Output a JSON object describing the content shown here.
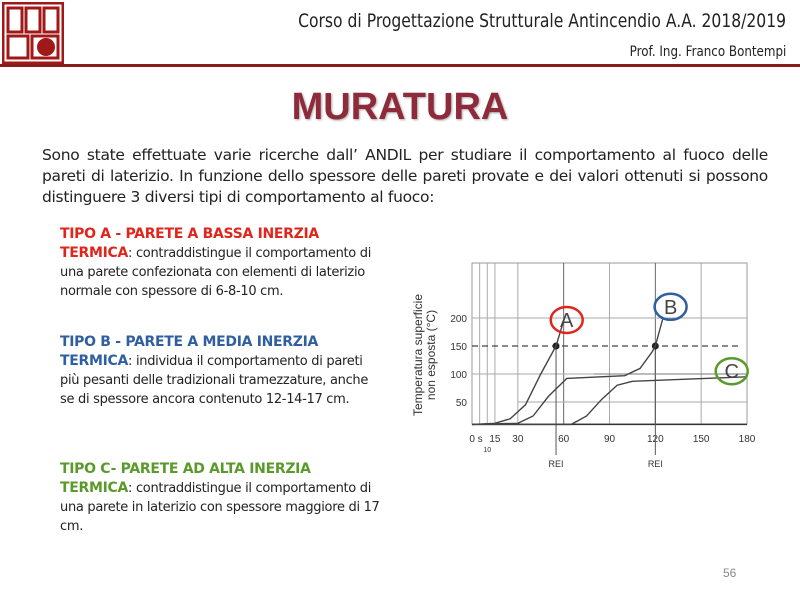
{
  "header": {
    "course": "Corso di Progettazione Strutturale Antincendio A.A. 2018/2019",
    "professor": "Prof. Ing. Franco Bontempi"
  },
  "title": "MURATURA",
  "intro": "Sono state effettuate varie ricerche dall’ ANDIL  per studiare il comportamento al fuoco delle pareti di laterizio. In funzione dello spessore delle pareti provate e dei valori ottenuti si possono distinguere 3 diversi tipi di comportamento al fuoco:",
  "types": [
    {
      "head1": "TIPO A - PARETE A BASSA INERZIA",
      "head2": "TERMICA",
      "text": ":  contraddistingue il comportamento di una parete confezionata con elementi di laterizio normale con spessore di 6-8-10 cm.",
      "color": "#e0261c"
    },
    {
      "head1": "TIPO B - PARETE A MEDIA INERZIA",
      "head2": "TERMICA",
      "text": ": individua il comportamento di pareti più pesanti delle tradizionali tramezzature, anche se di spessore ancora contenuto 12-14-17 cm.",
      "color": "#2f5fa0"
    },
    {
      "head1": "TIPO C- PARETE AD ALTA INERZIA",
      "head2": "TERMICA",
      "text": ": contraddistingue il comportamento di una parete in laterizio con spessore maggiore di 17 cm.",
      "color": "#5a9a2a"
    }
  ],
  "page_number": "56",
  "chart_data": {
    "type": "line",
    "ylabel": "Temperatura superficie non esposta (°C)",
    "x_ticks": [
      "0 s",
      "10",
      "15",
      "30",
      "60",
      "90",
      "120",
      "150",
      "180"
    ],
    "y_ticks": [
      "50",
      "100",
      "150",
      "200"
    ],
    "xlim": [
      0,
      180
    ],
    "ylim": [
      0,
      250
    ],
    "threshold": 150,
    "rei_label": "REI",
    "rei_marks": [
      55,
      120
    ],
    "grid": true,
    "series": [
      {
        "name": "A",
        "color": "#e0261c",
        "points": [
          [
            0,
            10
          ],
          [
            15,
            12
          ],
          [
            25,
            20
          ],
          [
            35,
            45
          ],
          [
            45,
            100
          ],
          [
            55,
            150
          ],
          [
            60,
            195
          ]
        ]
      },
      {
        "name": "B",
        "color": "#2f5fa0",
        "points": [
          [
            0,
            10
          ],
          [
            30,
            12
          ],
          [
            40,
            25
          ],
          [
            50,
            60
          ],
          [
            62,
            92
          ],
          [
            100,
            97
          ],
          [
            110,
            110
          ],
          [
            118,
            140
          ],
          [
            120,
            150
          ],
          [
            125,
            200
          ]
        ]
      },
      {
        "name": "C",
        "color": "#5a9a2a",
        "points": [
          [
            0,
            10
          ],
          [
            65,
            10
          ],
          [
            75,
            25
          ],
          [
            85,
            55
          ],
          [
            95,
            80
          ],
          [
            105,
            87
          ],
          [
            180,
            95
          ]
        ]
      }
    ]
  }
}
